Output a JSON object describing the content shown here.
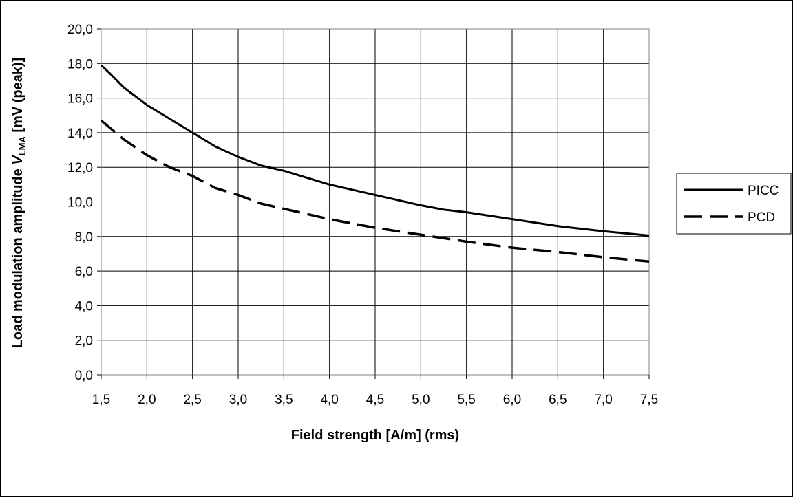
{
  "chart_data": {
    "type": "line",
    "title": "",
    "xlabel": "Field strength [A/m]  (rms)",
    "ylabel": {
      "prefix": "Load modulation amplitude ",
      "variable": "V",
      "subscript": "LMA",
      "suffix": "  [mV (peak)]"
    },
    "xlim": [
      1.5,
      7.5
    ],
    "ylim": [
      0,
      20
    ],
    "x_ticks": [
      "1,5",
      "2,0",
      "2,5",
      "3,0",
      "3,5",
      "4,0",
      "4,5",
      "5,0",
      "5,5",
      "6,0",
      "6,5",
      "7,0",
      "7,5"
    ],
    "y_ticks": [
      "0,0",
      "2,0",
      "4,0",
      "6,0",
      "8,0",
      "10,0",
      "12,0",
      "14,0",
      "16,0",
      "18,0",
      "20,0"
    ],
    "grid": true,
    "legend_position": "right",
    "series": [
      {
        "name": "PICC",
        "style": "solid",
        "color": "#000000",
        "x": [
          1.5,
          1.6,
          1.75,
          1.9,
          2.0,
          2.25,
          2.5,
          2.75,
          3.0,
          3.25,
          3.5,
          3.75,
          4.0,
          4.5,
          5.0,
          5.25,
          5.5,
          6.0,
          6.5,
          7.0,
          7.5
        ],
        "y": [
          17.9,
          17.4,
          16.6,
          16.0,
          15.6,
          14.8,
          14.0,
          13.2,
          12.6,
          12.1,
          11.8,
          11.4,
          11.0,
          10.4,
          9.8,
          9.55,
          9.4,
          9.0,
          8.6,
          8.3,
          8.05
        ]
      },
      {
        "name": "PCD",
        "style": "dashed",
        "color": "#000000",
        "x": [
          1.5,
          1.75,
          2.0,
          2.25,
          2.5,
          2.75,
          3.0,
          3.25,
          3.5,
          4.0,
          4.5,
          5.0,
          5.5,
          6.0,
          6.5,
          7.0,
          7.5
        ],
        "y": [
          14.7,
          13.6,
          12.7,
          12.0,
          11.5,
          10.8,
          10.4,
          9.9,
          9.6,
          9.0,
          8.5,
          8.1,
          7.7,
          7.35,
          7.1,
          6.8,
          6.55
        ]
      }
    ]
  }
}
